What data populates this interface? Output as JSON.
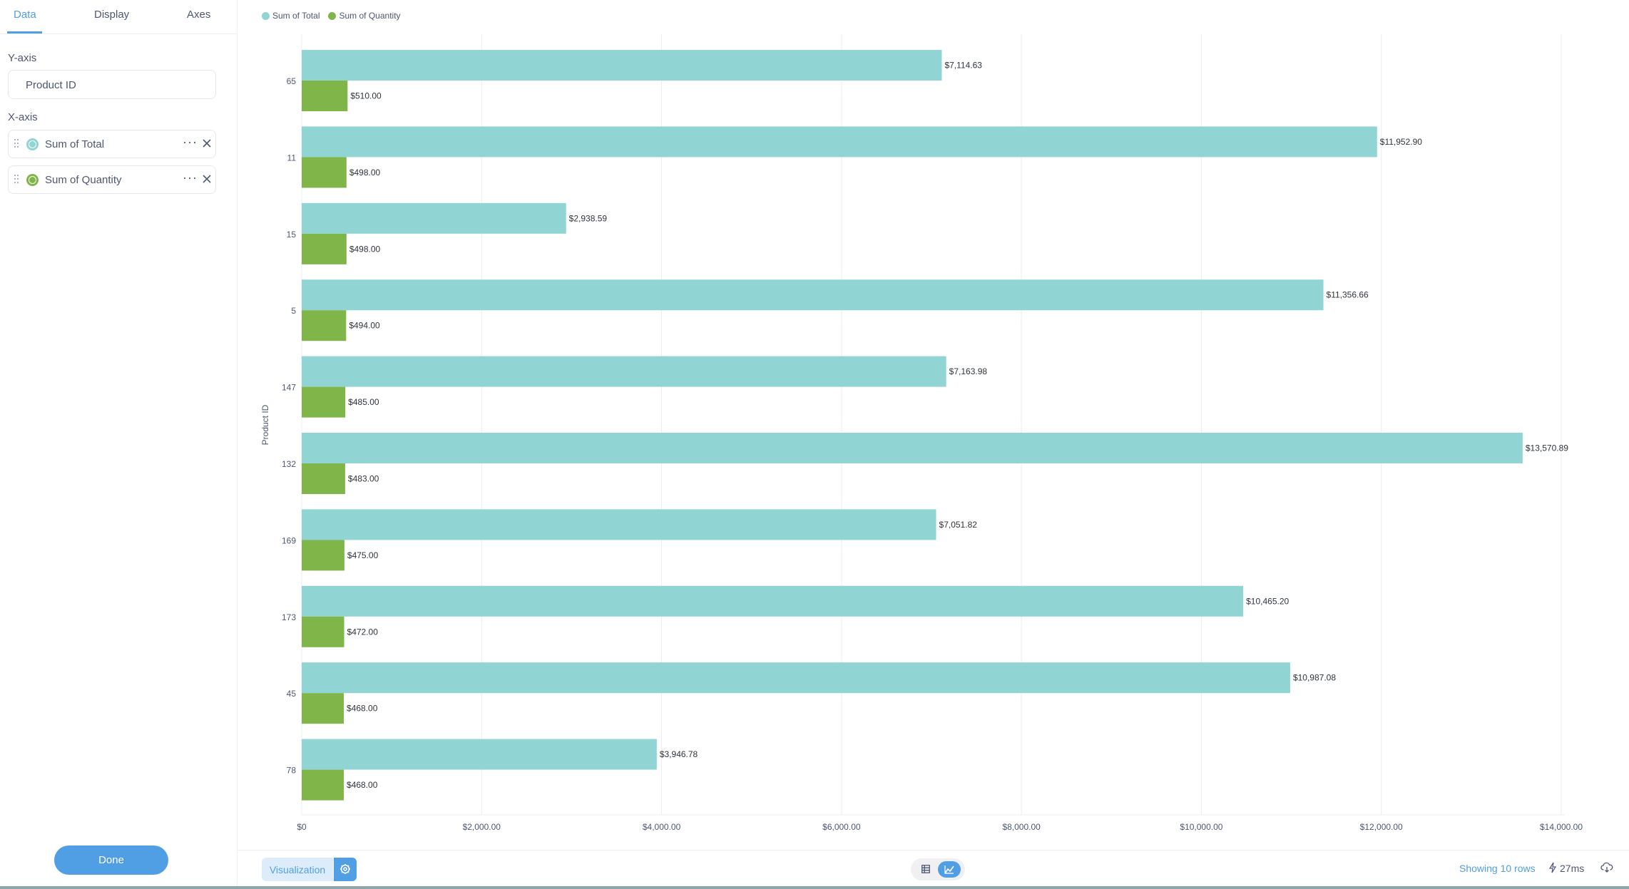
{
  "tabs": [
    {
      "label": "Data",
      "active": true
    },
    {
      "label": "Display",
      "active": false
    },
    {
      "label": "Axes",
      "active": false
    }
  ],
  "sidebar": {
    "y_axis_label": "Y-axis",
    "y_axis_field": "Product ID",
    "x_axis_label": "X-axis",
    "series": [
      {
        "label": "Sum of Total",
        "color": "#88BF4D",
        "swatch": "#91D4D4"
      },
      {
        "label": "Sum of Quantity",
        "color": "#88BF4D",
        "swatch": "#80B54A"
      }
    ],
    "done_label": "Done"
  },
  "colors": {
    "accent": "#509EE3",
    "total": "#91D4D4",
    "quantity": "#80B54A"
  },
  "chart_data": {
    "type": "bar",
    "orientation": "horizontal",
    "ylabel": "Product ID",
    "categories": [
      "65",
      "11",
      "15",
      "5",
      "147",
      "132",
      "169",
      "173",
      "45",
      "78"
    ],
    "series": [
      {
        "name": "Sum of Total",
        "values": [
          7114.63,
          11952.9,
          2938.59,
          11356.66,
          7163.98,
          13570.89,
          7051.82,
          10465.2,
          10987.08,
          3946.78
        ],
        "labels": [
          "$7,114.63",
          "$11,952.90",
          "$2,938.59",
          "$11,356.66",
          "$7,163.98",
          "$13,570.89",
          "$7,051.82",
          "$10,465.20",
          "$10,987.08",
          "$3,946.78"
        ]
      },
      {
        "name": "Sum of Quantity",
        "values": [
          510,
          498,
          498,
          494,
          485,
          483,
          475,
          472,
          468,
          468
        ],
        "labels": [
          "$510.00",
          "$498.00",
          "$498.00",
          "$494.00",
          "$485.00",
          "$483.00",
          "$475.00",
          "$472.00",
          "$468.00",
          "$468.00"
        ]
      }
    ],
    "xlim": [
      0,
      14000
    ],
    "xticks": [
      0,
      2000,
      4000,
      6000,
      8000,
      10000,
      12000,
      14000
    ],
    "xtick_labels": [
      "$0",
      "$2,000.00",
      "$4,000.00",
      "$6,000.00",
      "$8,000.00",
      "$10,000.00",
      "$12,000.00",
      "$14,000.00"
    ],
    "grid": true,
    "legend_position": "top-left"
  },
  "footer": {
    "viz_label": "Visualization",
    "rows_text": "Showing 10 rows",
    "time_text": "27ms"
  }
}
